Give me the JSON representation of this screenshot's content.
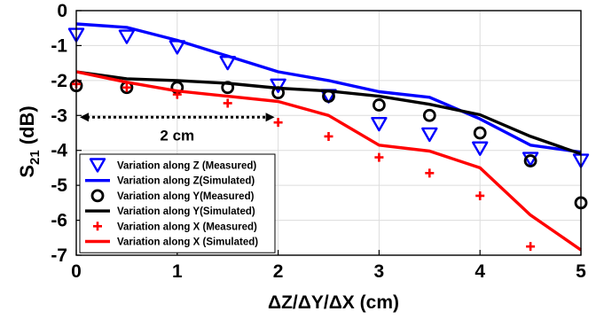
{
  "chart_data": {
    "type": "line",
    "xlabel": "ΔZ/ΔY/ΔX (cm)",
    "ylabel_main": "S",
    "ylabel_sub": "21",
    "ylabel_unit": "(dB)",
    "xlim": [
      0,
      5
    ],
    "ylim": [
      -7,
      0
    ],
    "x_ticks": [
      "0",
      "1",
      "2",
      "3",
      "4",
      "5"
    ],
    "y_ticks": [
      "0",
      "-1",
      "-2",
      "-3",
      "-4",
      "-5",
      "-6",
      "-7"
    ],
    "grid": true,
    "legend_position": "bottom-left",
    "annotation": {
      "text": "2 cm",
      "from_x": 0,
      "to_x": 2,
      "y": -3.05
    },
    "series": [
      {
        "name": "Variation along Z (Measured)",
        "kind": "marker",
        "marker": "triangle-down",
        "color": "#0000ff",
        "x": [
          0,
          0.5,
          1,
          1.5,
          2,
          2.5,
          3,
          3.5,
          4,
          4.5,
          5
        ],
        "y": [
          -0.7,
          -0.75,
          -1.05,
          -1.5,
          -2.15,
          -2.45,
          -3.25,
          -3.55,
          -3.95,
          -4.25,
          -4.3
        ]
      },
      {
        "name": "Variation along Z(Simulated)",
        "kind": "line",
        "color": "#0000ff",
        "x": [
          0,
          0.5,
          1,
          1.5,
          2,
          2.5,
          3,
          3.5,
          4,
          4.5,
          5
        ],
        "y": [
          -0.38,
          -0.48,
          -0.85,
          -1.3,
          -1.75,
          -2.0,
          -2.32,
          -2.48,
          -3.1,
          -3.85,
          -4.05
        ]
      },
      {
        "name": "Variation along Y(Measured)",
        "kind": "marker",
        "marker": "circle",
        "color": "#000000",
        "x": [
          0,
          0.5,
          1,
          1.5,
          2,
          2.5,
          3,
          3.5,
          4,
          4.5,
          5
        ],
        "y": [
          -2.15,
          -2.2,
          -2.2,
          -2.2,
          -2.35,
          -2.45,
          -2.7,
          -3.0,
          -3.5,
          -4.3,
          -5.5
        ]
      },
      {
        "name": "Variation along Y(Simulated)",
        "kind": "line",
        "color": "#000000",
        "x": [
          0,
          0.5,
          1,
          1.5,
          2,
          2.5,
          3,
          3.5,
          4,
          4.5,
          5
        ],
        "y": [
          -1.75,
          -1.95,
          -2.0,
          -2.08,
          -2.22,
          -2.3,
          -2.45,
          -2.68,
          -2.98,
          -3.6,
          -4.1
        ]
      },
      {
        "name": "Variation along X (Measured)",
        "kind": "marker",
        "marker": "plus",
        "color": "#ff0000",
        "x": [
          0,
          0.5,
          1,
          1.5,
          2,
          2.5,
          3,
          3.5,
          4,
          4.5
        ],
        "y": [
          -2.1,
          -2.2,
          -2.4,
          -2.65,
          -3.2,
          -3.6,
          -4.2,
          -4.65,
          -5.3,
          -6.75
        ]
      },
      {
        "name": "Variation along X (Simulated)",
        "kind": "line",
        "color": "#ff0000",
        "x": [
          0,
          0.5,
          1,
          1.5,
          2,
          2.5,
          3,
          3.5,
          4,
          4.5,
          5
        ],
        "y": [
          -1.75,
          -2.05,
          -2.3,
          -2.45,
          -2.6,
          -3.0,
          -3.85,
          -4.02,
          -4.5,
          -5.85,
          -6.85
        ]
      }
    ]
  }
}
